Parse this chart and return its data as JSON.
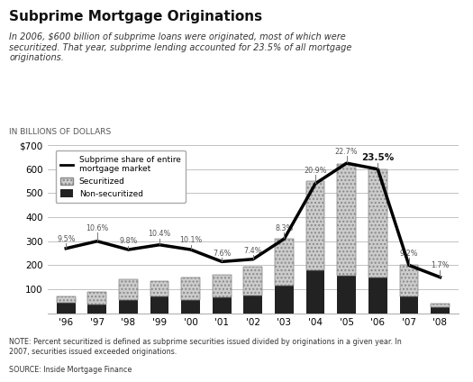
{
  "years": [
    "'96",
    "'97",
    "'98",
    "'99",
    "'00",
    "'01",
    "'02",
    "'03",
    "'04",
    "'05",
    "'06",
    "'07",
    "'08"
  ],
  "securitized": [
    25,
    55,
    85,
    65,
    95,
    95,
    120,
    195,
    370,
    465,
    449,
    130,
    15
  ],
  "non_securitized": [
    45,
    35,
    55,
    70,
    55,
    65,
    75,
    115,
    180,
    155,
    150,
    70,
    25
  ],
  "subprime_share_line": [
    270,
    300,
    265,
    285,
    265,
    215,
    225,
    310,
    540,
    625,
    600,
    200,
    150
  ],
  "pct_labels": [
    "9.5%",
    "10.6%",
    "9.8%",
    "10.4%",
    "10.1%",
    "7.6%",
    "7.4%",
    "8.3%",
    "20.9%",
    "22.7%",
    "23.5%",
    "9.2%",
    "1.7%"
  ],
  "bold_label_idx": 10,
  "label_offsets": [
    22,
    38,
    18,
    28,
    22,
    18,
    18,
    28,
    38,
    32,
    28,
    32,
    32
  ],
  "title": "Subprime Mortgage Originations",
  "subtitle": "In 2006, $600 billion of subprime loans were originated, most of which were\nsecuritized. That year, subprime lending accounted for 23.5% of all mortgage\noriginations.",
  "axis_label": "IN BILLIONS OF DOLLARS",
  "note": "NOTE: Percent securitized is defined as subprime securities issued divided by originations in a given year. In\n2007, securities issued exceeded originations.",
  "source": "SOURCE: Inside Mortgage Finance",
  "ylim": [
    0,
    700
  ],
  "yticks": [
    0,
    100,
    200,
    300,
    400,
    500,
    600,
    700
  ],
  "ytick_labels": [
    "",
    "100",
    "200",
    "300",
    "400",
    "500",
    "600",
    "$700"
  ],
  "bar_width": 0.6,
  "securitized_color": "#cccccc",
  "non_securitized_color": "#222222",
  "line_color": "#000000",
  "background_color": "#ffffff",
  "tick_line_color": "#777777",
  "label_color_normal": "#555555",
  "label_color_bold": "#111111"
}
